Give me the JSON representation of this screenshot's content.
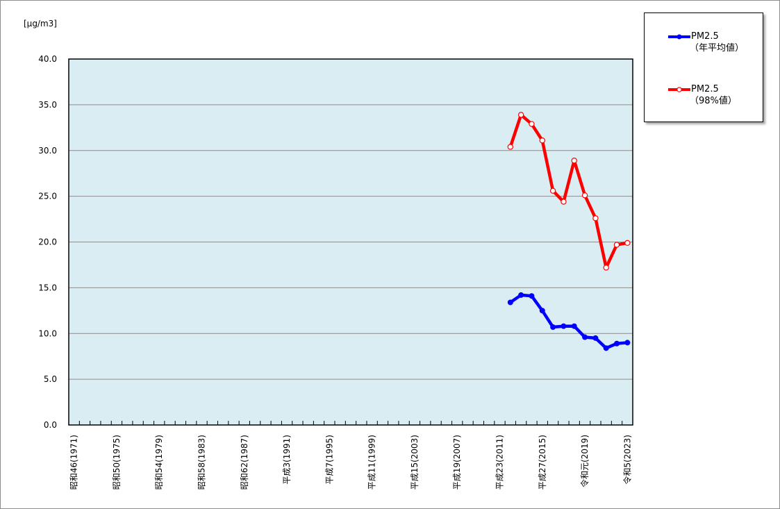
{
  "chart_data": {
    "type": "line",
    "ylabel": "[μg/m3]",
    "ylim": [
      0,
      40
    ],
    "y_ticks": [
      "0.0",
      "5.0",
      "10.0",
      "15.0",
      "20.0",
      "25.0",
      "30.0",
      "35.0",
      "40.0"
    ],
    "years": [
      1971,
      1972,
      1973,
      1974,
      1975,
      1976,
      1977,
      1978,
      1979,
      1980,
      1981,
      1982,
      1983,
      1984,
      1985,
      1986,
      1987,
      1988,
      1989,
      1990,
      1991,
      1992,
      1993,
      1994,
      1995,
      1996,
      1997,
      1998,
      1999,
      2000,
      2001,
      2002,
      2003,
      2004,
      2005,
      2006,
      2007,
      2008,
      2009,
      2010,
      2011,
      2012,
      2013,
      2014,
      2015,
      2016,
      2017,
      2018,
      2019,
      2020,
      2021,
      2022,
      2023
    ],
    "x_tick_labels": [
      {
        "year": 1971,
        "label": "昭和46(1971)"
      },
      {
        "year": 1975,
        "label": "昭和50(1975)"
      },
      {
        "year": 1979,
        "label": "昭和54(1979)"
      },
      {
        "year": 1983,
        "label": "昭和58(1983)"
      },
      {
        "year": 1987,
        "label": "昭和62(1987)"
      },
      {
        "year": 1991,
        "label": "平成3(1991)"
      },
      {
        "year": 1995,
        "label": "平成7(1995)"
      },
      {
        "year": 1999,
        "label": "平成11(1999)"
      },
      {
        "year": 2003,
        "label": "平成15(2003)"
      },
      {
        "year": 2007,
        "label": "平成19(2007)"
      },
      {
        "year": 2011,
        "label": "平成23(2011)"
      },
      {
        "year": 2015,
        "label": "平成27(2015)"
      },
      {
        "year": 2019,
        "label": "令和元(2019)"
      },
      {
        "year": 2023,
        "label": "令和5(2023)"
      }
    ],
    "grid": true,
    "legend_position": "right-top, outside plot",
    "plot_background": "#daedf3",
    "series": [
      {
        "name": "PM2.5",
        "name_sub": "（年平均値）",
        "color": "#0000ff",
        "marker": "filled",
        "x": [
          2012,
          2013,
          2014,
          2015,
          2016,
          2017,
          2018,
          2019,
          2020,
          2021,
          2022,
          2023
        ],
        "values": [
          13.4,
          14.2,
          14.1,
          12.5,
          10.7,
          10.8,
          10.8,
          9.6,
          9.5,
          8.4,
          8.9,
          9.0
        ]
      },
      {
        "name": "PM2.5",
        "name_sub": "（98%値）",
        "color": "#ff0000",
        "marker": "hollow",
        "x": [
          2012,
          2013,
          2014,
          2015,
          2016,
          2017,
          2018,
          2019,
          2020,
          2021,
          2022,
          2023
        ],
        "values": [
          30.4,
          33.9,
          32.9,
          31.1,
          25.6,
          24.4,
          28.9,
          25.1,
          22.6,
          17.2,
          19.7,
          19.9
        ]
      }
    ]
  }
}
